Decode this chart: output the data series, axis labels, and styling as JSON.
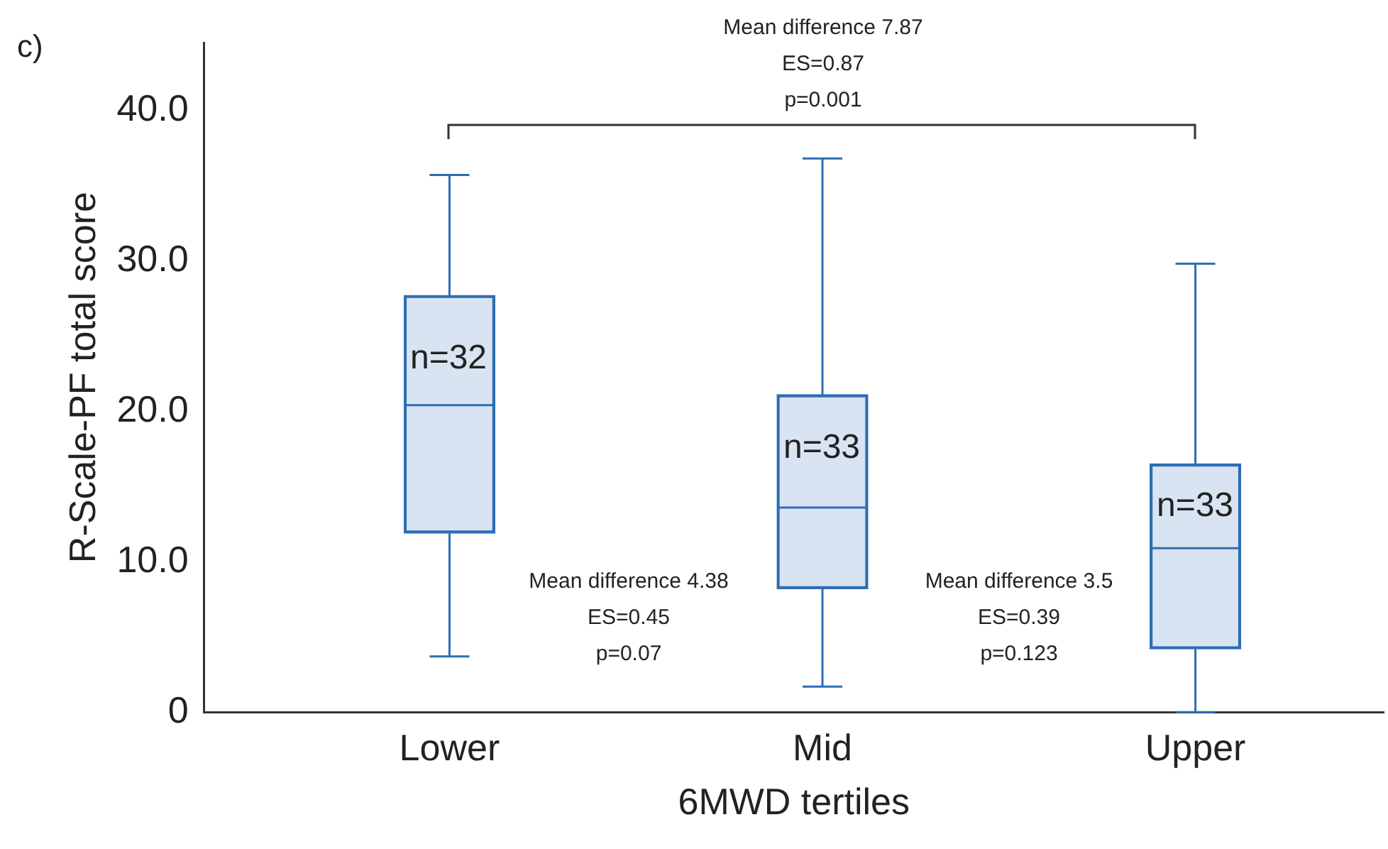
{
  "chart_data": {
    "type": "box",
    "categories": [
      "Lower",
      "Mid",
      "Upper"
    ],
    "boxes": [
      {
        "low": 3.7,
        "q1": 11.9,
        "median": 20.4,
        "q3": 27.7,
        "high": 35.7
      },
      {
        "low": 1.7,
        "q1": 8.2,
        "median": 13.6,
        "q3": 21.1,
        "high": 36.8
      },
      {
        "low": 0,
        "q1": 4.2,
        "median": 10.9,
        "q3": 16.5,
        "high": 29.8
      }
    ],
    "color": "#2e6db4",
    "xlabel": "6MWD tertiles",
    "ylabel": "R-Scale-PF total score",
    "ylim": [
      0,
      44.5
    ],
    "yticks": [
      0,
      {
        "value": 10,
        "label": "10.0"
      },
      {
        "value": 20,
        "label": "20.0"
      },
      {
        "value": 30,
        "label": "30.0"
      },
      {
        "value": 40,
        "label": "40.0"
      }
    ],
    "grid": false,
    "legend": false,
    "annotations": [
      "c)",
      "Mean difference 7.87\nES=0.87\np=0.001",
      "Mean difference 4.38\nES=0.45\np=0.07",
      "Mean difference 3.5\nES=0.39\np=0.123",
      "n=32",
      "n=33",
      "n=33"
    ]
  }
}
